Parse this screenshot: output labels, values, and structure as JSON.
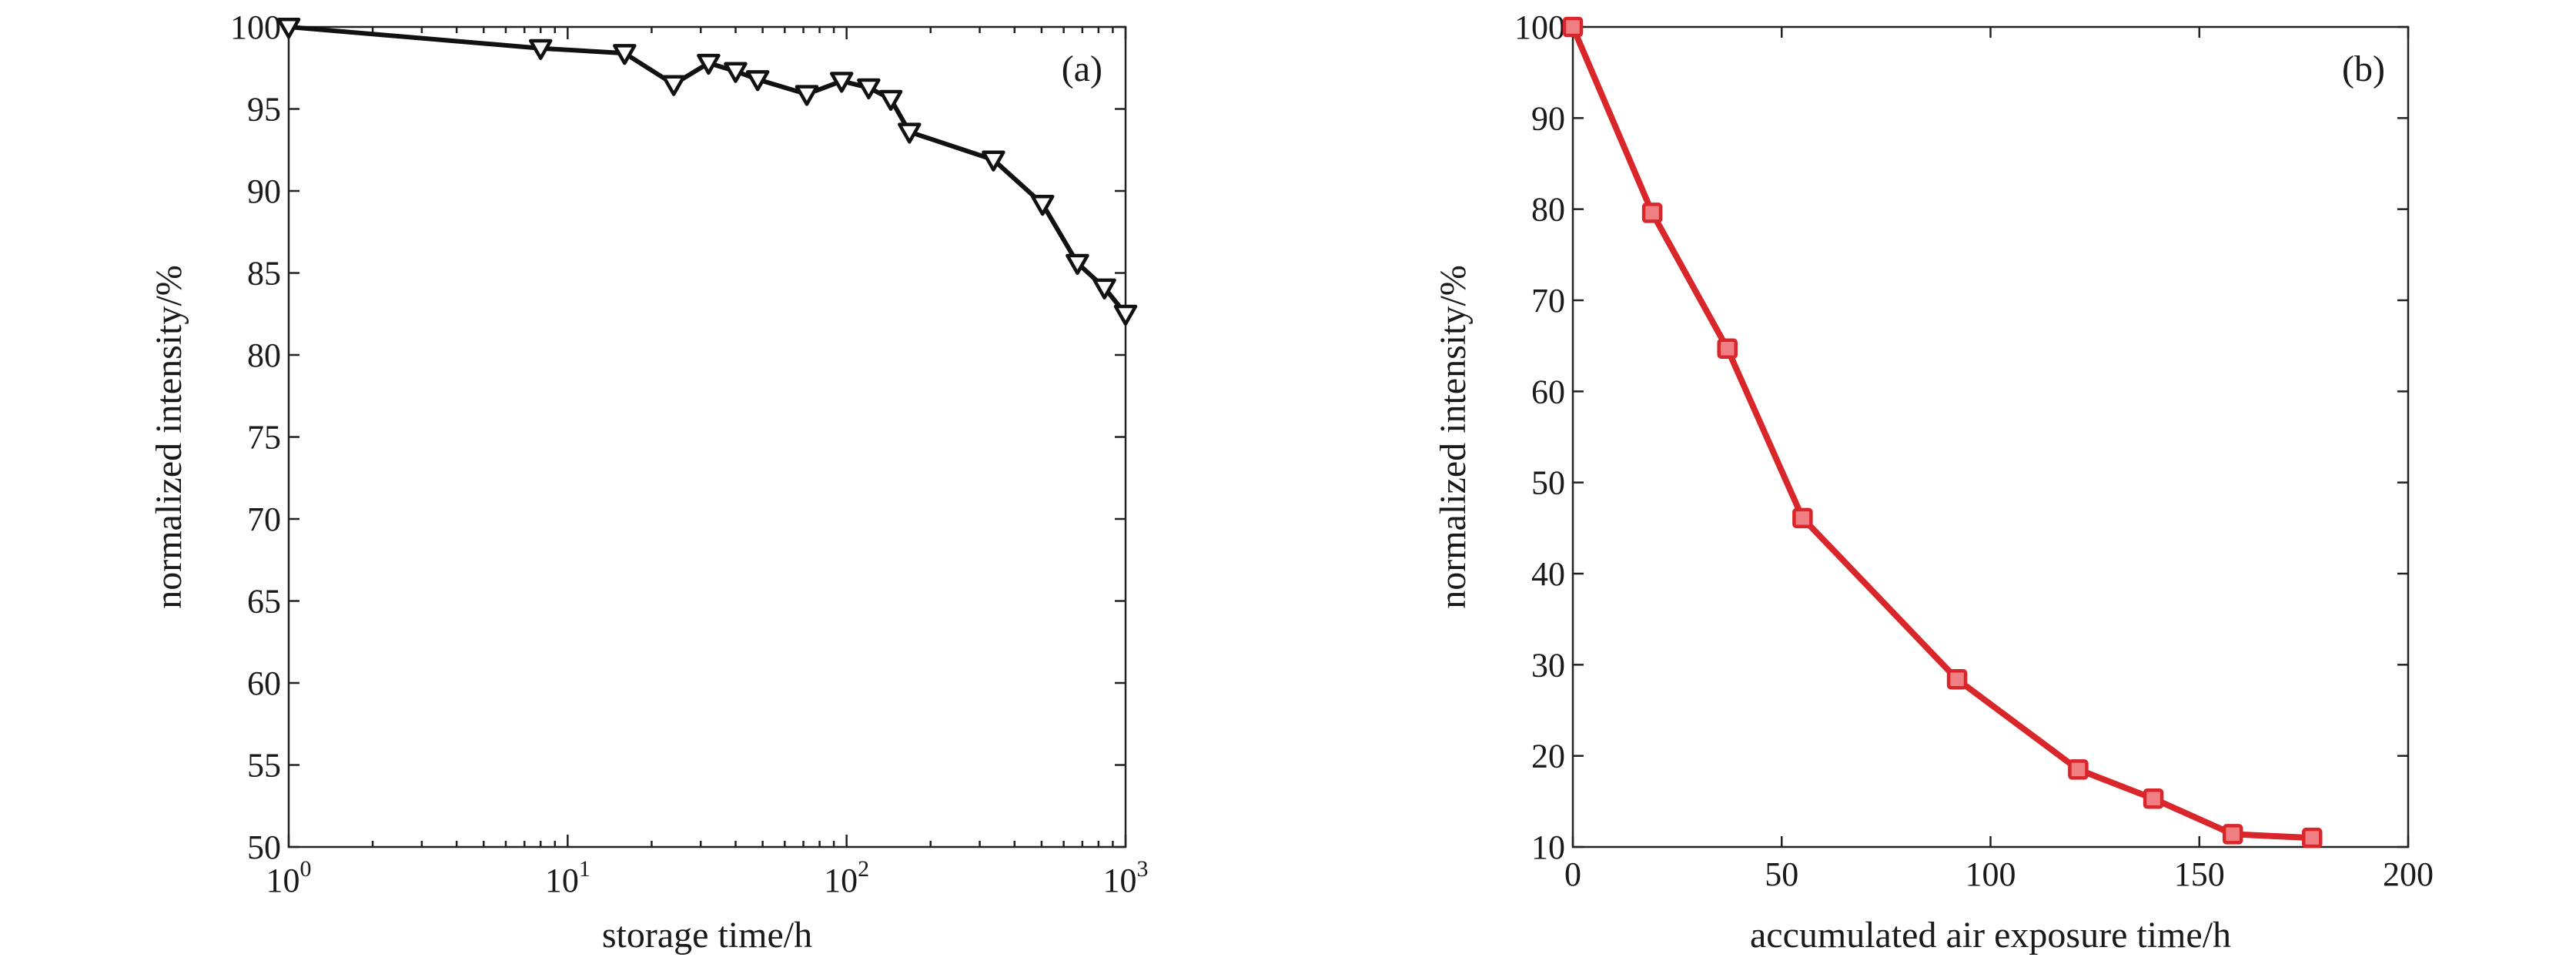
{
  "chart_data": [
    {
      "type": "line",
      "panel_label": "(a)",
      "xlabel": "storage time/h",
      "ylabel": "normalized intensity/%",
      "xscale": "log",
      "xlim": [
        1,
        1000
      ],
      "ylim": [
        50,
        100
      ],
      "x_ticks": [
        1,
        10,
        100,
        1000
      ],
      "x_tick_base": "10",
      "x_tick_exponents": [
        "0",
        "1",
        "2",
        "3"
      ],
      "y_ticks": [
        "50",
        "55",
        "60",
        "65",
        "70",
        "75",
        "80",
        "85",
        "90",
        "95",
        "100"
      ],
      "grid": false,
      "marker": "triangle-down",
      "color": "#111111",
      "series": [
        {
          "x": [
            1,
            8,
            16,
            24,
            32,
            40,
            48,
            72,
            96,
            120,
            144,
            168,
            336,
            504,
            672,
            840,
            1000
          ],
          "y": [
            100,
            98.7,
            98.4,
            96.5,
            97.8,
            97.3,
            96.8,
            95.9,
            96.7,
            96.3,
            95.6,
            93.6,
            91.9,
            89.2,
            85.6,
            84.1,
            82.5
          ]
        }
      ]
    },
    {
      "type": "line",
      "panel_label": "(b)",
      "xlabel": "accumulated air exposure time/h",
      "ylabel": "normalized intensity/%",
      "xscale": "linear",
      "xlim": [
        0,
        200
      ],
      "ylim": [
        10,
        100
      ],
      "x_ticks": [
        "0",
        "50",
        "100",
        "150",
        "200"
      ],
      "y_ticks": [
        "10",
        "20",
        "30",
        "40",
        "50",
        "60",
        "70",
        "80",
        "90",
        "100"
      ],
      "grid": false,
      "marker": "square",
      "color": "#d9262a",
      "series": [
        {
          "x": [
            0,
            19,
            37,
            55,
            92,
            121,
            139,
            158,
            177
          ],
          "y": [
            100,
            79.6,
            64.7,
            46.1,
            28.4,
            18.5,
            15.3,
            11.4,
            11.0
          ]
        }
      ]
    }
  ]
}
